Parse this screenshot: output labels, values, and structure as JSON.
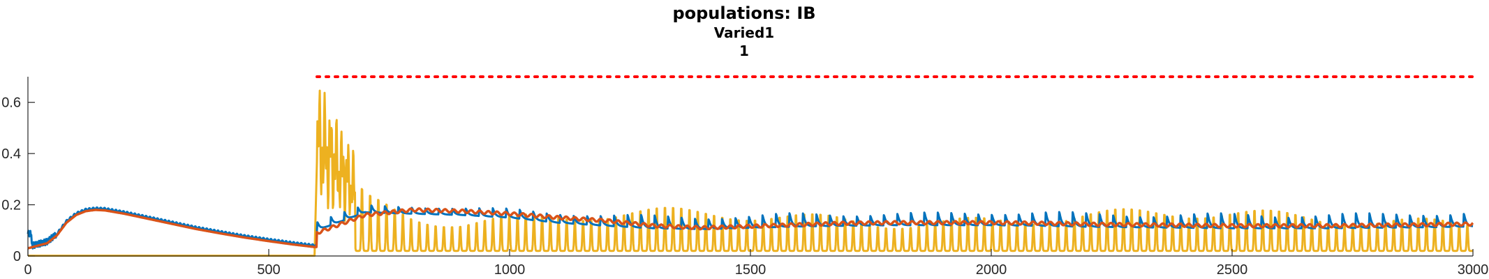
{
  "chart_data": {
    "type": "line",
    "title": "populations: IB",
    "subtitle_lines": [
      "Varied1",
      "1"
    ],
    "xlabel": "",
    "ylabel": "",
    "xlim": [
      0,
      3000
    ],
    "ylim": [
      0,
      0.7
    ],
    "x_ticks": [
      0,
      500,
      1000,
      1500,
      2000,
      2500,
      3000
    ],
    "x_tick_labels": [
      "0",
      "500",
      "1000",
      "1500",
      "2000",
      "2500",
      "3000"
    ],
    "y_ticks": [
      0,
      0.2,
      0.4,
      0.6
    ],
    "y_tick_labels": [
      "0",
      "0.2",
      "0.4",
      "0.6"
    ],
    "grid": false,
    "legend": "none",
    "series_colors": {
      "blue": "#0072BD",
      "orange": "#D95319",
      "yellow": "#EDB120",
      "threshold": "#FF0000"
    },
    "reference_line": {
      "y": 0.7,
      "x_start": 600,
      "x_end": 3000,
      "style": "dotted",
      "color": "#FF0000"
    },
    "stimulus_onset_x": 600,
    "baseline": {
      "x": [
        0,
        20,
        40,
        60,
        80,
        100,
        120,
        140,
        160,
        200,
        250,
        300,
        350,
        400,
        450,
        500,
        550,
        595
      ],
      "orange": [
        0.03,
        0.04,
        0.05,
        0.08,
        0.13,
        0.16,
        0.175,
        0.18,
        0.178,
        0.165,
        0.145,
        0.125,
        0.105,
        0.088,
        0.072,
        0.058,
        0.045,
        0.035
      ],
      "blue_offset": 0.006
    },
    "envelope": {
      "x": [
        600,
        700,
        800,
        900,
        1000,
        1100,
        1200,
        1300,
        1400,
        1500,
        1600,
        1700,
        1800,
        1900,
        2000,
        2100,
        2200,
        2300,
        2400,
        2500,
        2600,
        2700,
        2800,
        2900,
        3000
      ],
      "orange": [
        0.09,
        0.16,
        0.18,
        0.175,
        0.165,
        0.15,
        0.138,
        0.118,
        0.11,
        0.116,
        0.122,
        0.128,
        0.13,
        0.13,
        0.13,
        0.128,
        0.124,
        0.122,
        0.12,
        0.118,
        0.118,
        0.118,
        0.12,
        0.122,
        0.125
      ],
      "blue_trough": [
        0.1,
        0.17,
        0.165,
        0.16,
        0.15,
        0.13,
        0.118,
        0.108,
        0.105,
        0.11,
        0.115,
        0.118,
        0.12,
        0.12,
        0.12,
        0.118,
        0.114,
        0.112,
        0.11,
        0.108,
        0.108,
        0.108,
        0.11,
        0.112,
        0.115
      ],
      "blue_peak": [
        0.15,
        0.21,
        0.21,
        0.2,
        0.2,
        0.19,
        0.18,
        0.18,
        0.18,
        0.18,
        0.19,
        0.19,
        0.19,
        0.19,
        0.2,
        0.2,
        0.19,
        0.19,
        0.19,
        0.19,
        0.19,
        0.19,
        0.19,
        0.2,
        0.2
      ],
      "yellow_peak": [
        0.7,
        0.33,
        0.24,
        0.2,
        0.2,
        0.2,
        0.2,
        0.2,
        0.2,
        0.2,
        0.2,
        0.2,
        0.2,
        0.2,
        0.2,
        0.2,
        0.2,
        0.2,
        0.2,
        0.2,
        0.2,
        0.2,
        0.2,
        0.2,
        0.2
      ],
      "yellow_trough": 0.02,
      "burst_peak_period": 17,
      "blue_peak_period": 28
    }
  }
}
